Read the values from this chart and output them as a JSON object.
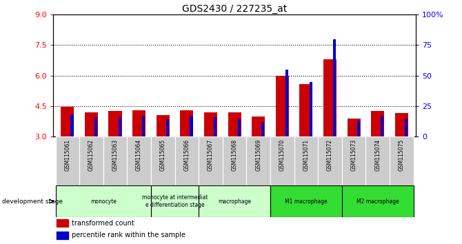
{
  "title": "GDS2430 / 227235_at",
  "samples": [
    "GSM115061",
    "GSM115062",
    "GSM115063",
    "GSM115064",
    "GSM115065",
    "GSM115066",
    "GSM115067",
    "GSM115068",
    "GSM115069",
    "GSM115070",
    "GSM115071",
    "GSM115072",
    "GSM115073",
    "GSM115074",
    "GSM115075"
  ],
  "transformed_count": [
    4.45,
    4.2,
    4.25,
    4.3,
    4.05,
    4.3,
    4.2,
    4.2,
    4.0,
    6.0,
    5.6,
    6.8,
    3.9,
    4.25,
    4.15
  ],
  "percentile_rank": [
    18,
    16,
    16,
    17,
    14,
    17,
    16,
    15,
    12,
    55,
    45,
    80,
    13,
    17,
    15
  ],
  "stage_groups": [
    {
      "label": "monocyte",
      "cols": [
        0,
        1,
        2,
        3
      ],
      "color": "#ccffcc"
    },
    {
      "label": "monocyte at intermediat\ne differentiation stage",
      "cols": [
        4,
        5
      ],
      "color": "#ccffcc"
    },
    {
      "label": "macrophage",
      "cols": [
        6,
        7,
        8
      ],
      "color": "#ccffcc"
    },
    {
      "label": "M1 macrophage",
      "cols": [
        9,
        10,
        11
      ],
      "color": "#33dd33"
    },
    {
      "label": "M2 macrophage",
      "cols": [
        12,
        13,
        14
      ],
      "color": "#33dd33"
    }
  ],
  "ylim_left": [
    3.0,
    9.0
  ],
  "ylim_right": [
    0,
    100
  ],
  "yticks_left": [
    3.0,
    4.5,
    6.0,
    7.5,
    9.0
  ],
  "yticks_right": [
    0,
    25,
    50,
    75,
    100
  ],
  "bar_color_red": "#cc0000",
  "bar_color_blue": "#0000cc",
  "background_color": "#ffffff"
}
